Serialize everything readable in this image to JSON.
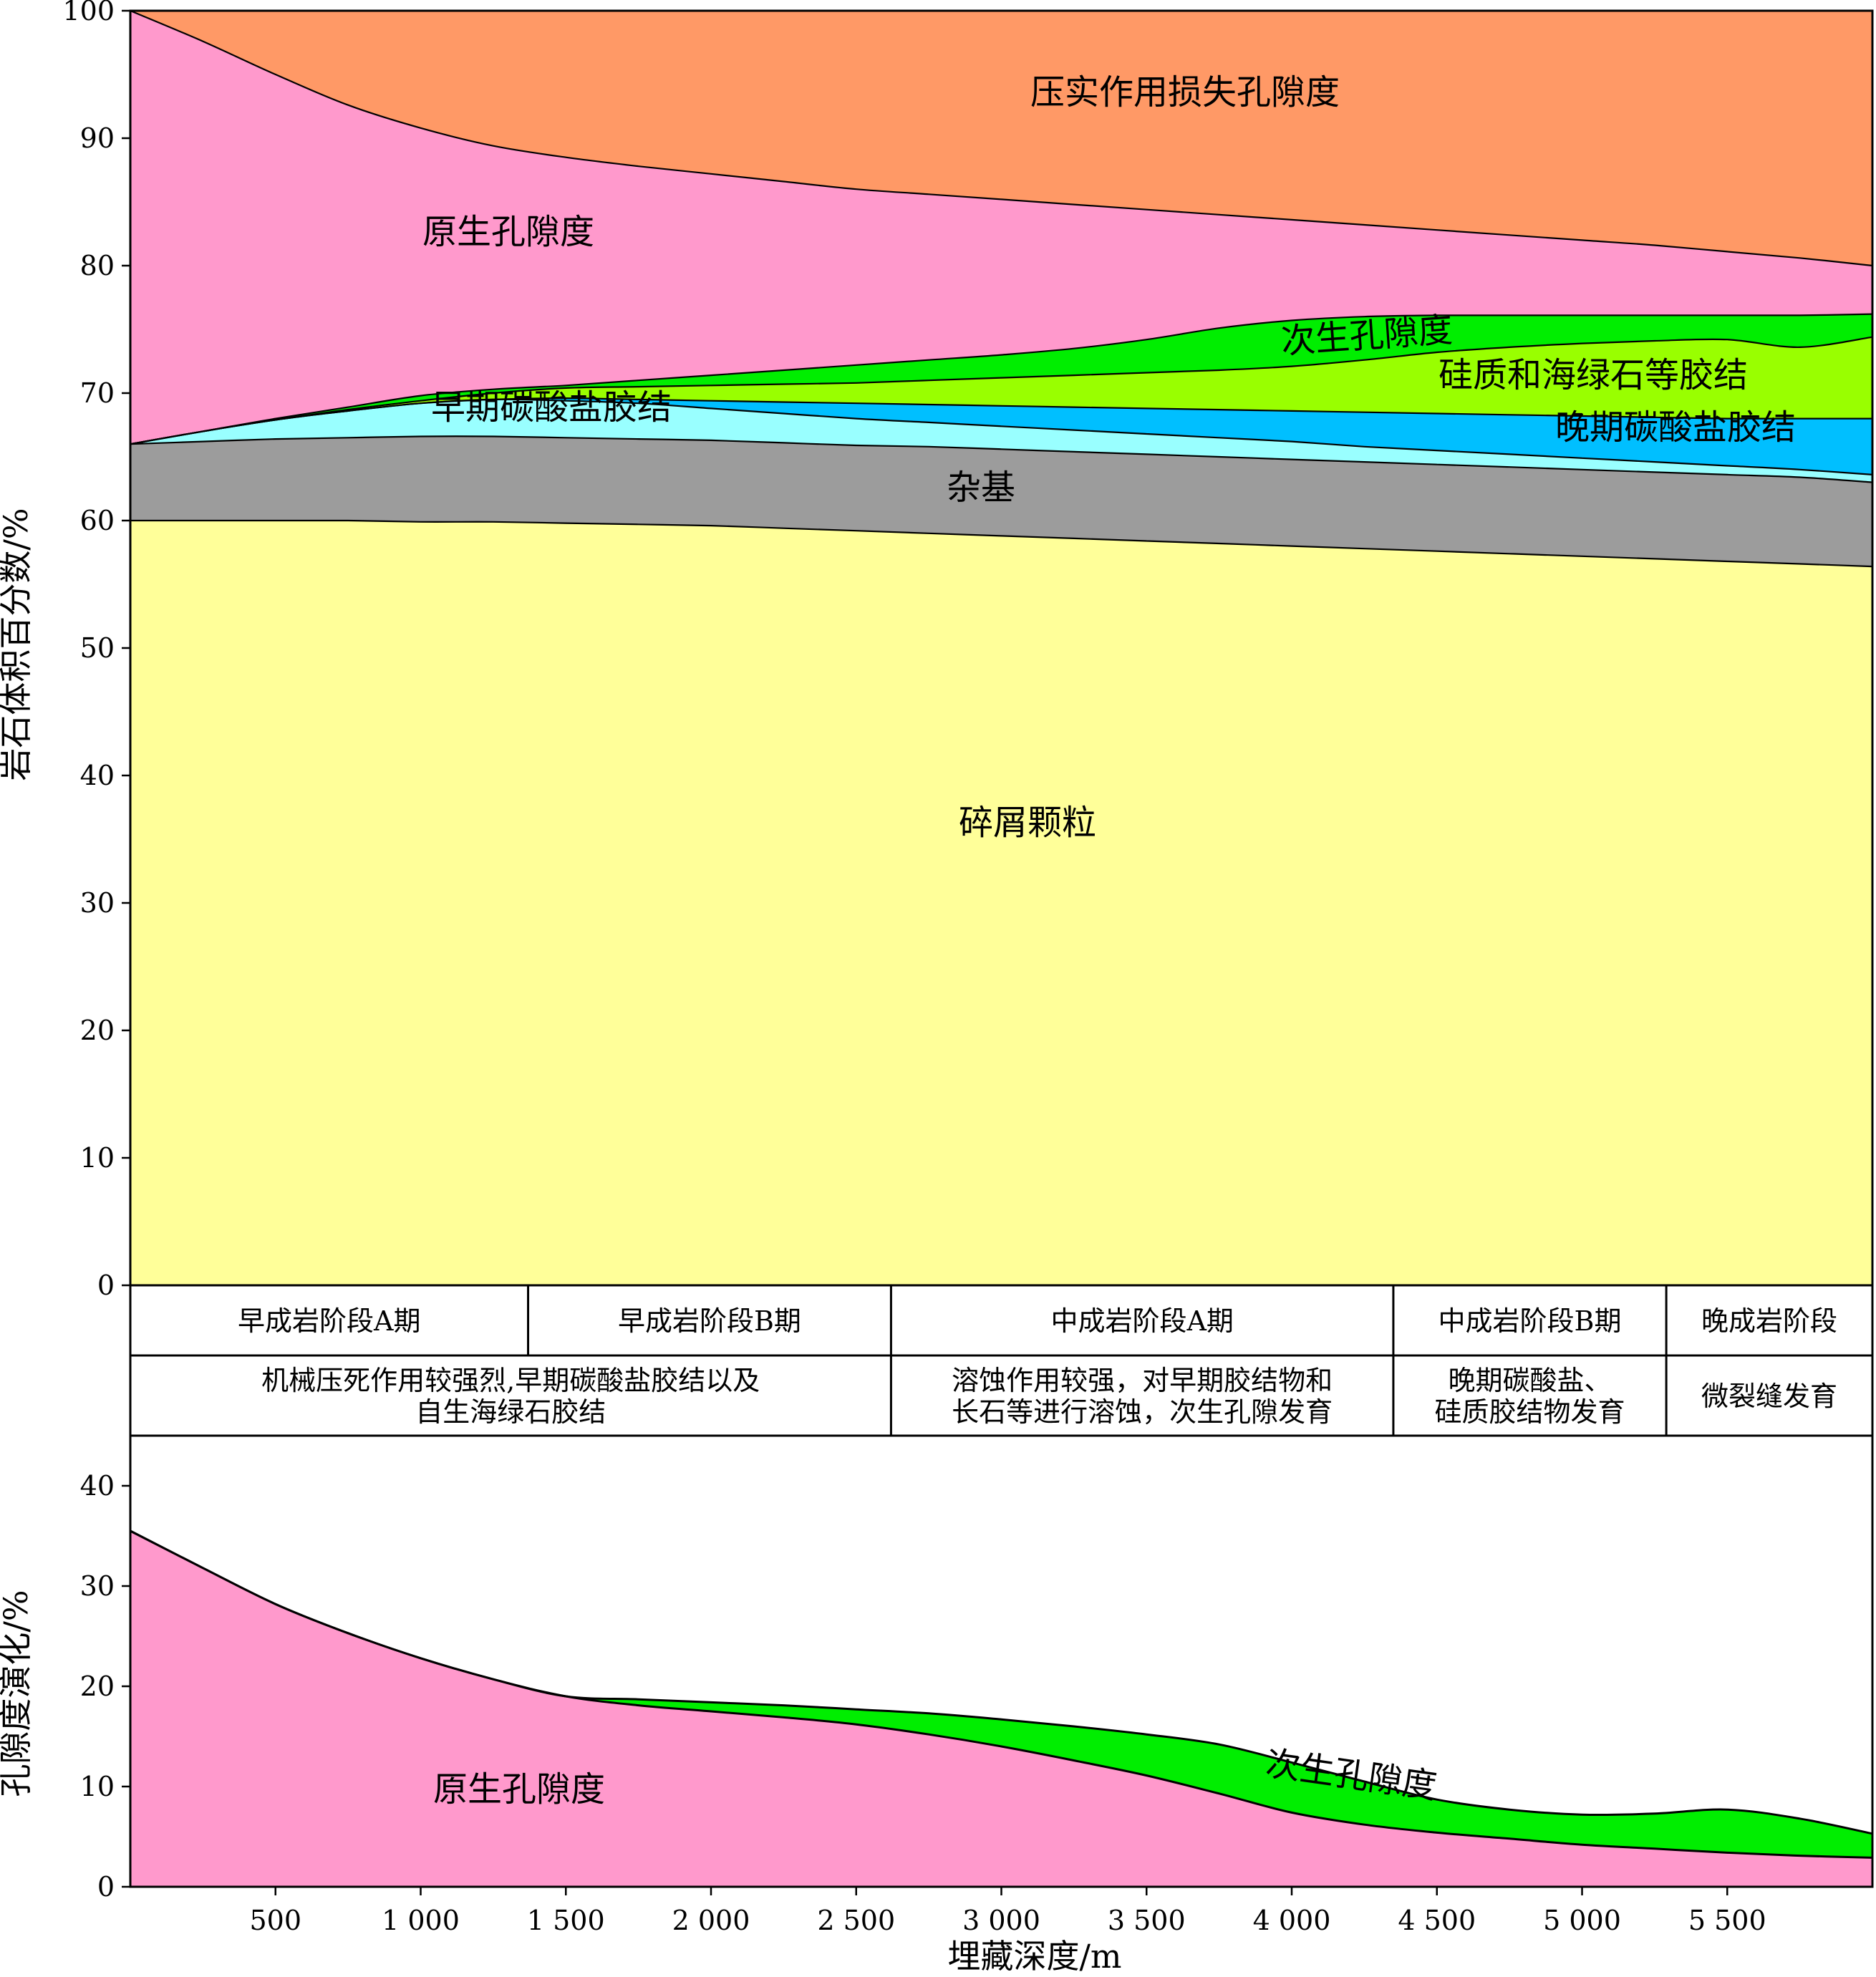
{
  "chart_data": [
    {
      "type": "area",
      "ylabel": "岩石体积百分数/%",
      "ylim": [
        0,
        100
      ],
      "yticks": [
        0,
        10,
        20,
        30,
        40,
        50,
        60,
        70,
        80,
        90,
        100
      ],
      "xlim": [
        0,
        6000
      ],
      "x": [
        0,
        250,
        500,
        750,
        1000,
        1250,
        1500,
        1750,
        2000,
        2250,
        2500,
        2750,
        3000,
        3250,
        3500,
        3750,
        4000,
        4250,
        4500,
        4750,
        5000,
        5250,
        5500,
        5750,
        6000
      ],
      "boundaries": {
        "clastic_grains_top": [
          60.0,
          60.0,
          60.0,
          60.0,
          59.9,
          59.9,
          59.8,
          59.7,
          59.6,
          59.4,
          59.2,
          59.0,
          58.8,
          58.6,
          58.4,
          58.2,
          58.0,
          57.8,
          57.6,
          57.4,
          57.2,
          57.0,
          56.8,
          56.6,
          56.4
        ],
        "matrix_top": [
          66.0,
          66.2,
          66.4,
          66.5,
          66.6,
          66.6,
          66.5,
          66.4,
          66.3,
          66.1,
          65.9,
          65.8,
          65.6,
          65.4,
          65.2,
          65.0,
          64.8,
          64.6,
          64.4,
          64.2,
          64.0,
          63.8,
          63.6,
          63.4,
          63.0
        ],
        "early_carbonate_top": [
          66.0,
          67.0,
          67.9,
          68.6,
          69.2,
          69.5,
          69.4,
          69.2,
          68.8,
          68.4,
          68.0,
          67.7,
          67.4,
          67.1,
          66.8,
          66.5,
          66.2,
          65.8,
          65.5,
          65.2,
          64.9,
          64.6,
          64.3,
          64.0,
          63.6
        ],
        "late_carbonate_top": [
          66.0,
          67.0,
          67.9,
          68.6,
          69.2,
          69.5,
          69.6,
          69.5,
          69.4,
          69.3,
          69.2,
          69.1,
          69.0,
          68.9,
          68.8,
          68.7,
          68.6,
          68.5,
          68.4,
          68.3,
          68.2,
          68.1,
          68.0,
          68.0,
          68.0
        ],
        "siliceous_glauconite_top": [
          66.0,
          67.0,
          67.9,
          68.7,
          69.4,
          70.0,
          70.4,
          70.5,
          70.6,
          70.7,
          70.8,
          71.0,
          71.2,
          71.4,
          71.6,
          71.8,
          72.1,
          72.6,
          73.2,
          73.6,
          73.9,
          74.1,
          74.2,
          73.6,
          74.4
        ],
        "secondary_porosity_top": [
          66.0,
          67.0,
          68.0,
          68.9,
          69.8,
          70.3,
          70.6,
          71.0,
          71.4,
          71.8,
          72.2,
          72.6,
          73.0,
          73.5,
          74.2,
          75.1,
          75.7,
          76.0,
          76.1,
          76.1,
          76.1,
          76.1,
          76.1,
          76.1,
          76.2
        ],
        "primary_porosity_top": [
          100.0,
          97.6,
          95.0,
          92.6,
          90.8,
          89.4,
          88.5,
          87.8,
          87.2,
          86.6,
          86.0,
          85.6,
          85.2,
          84.8,
          84.4,
          84.0,
          83.6,
          83.2,
          82.8,
          82.4,
          82.0,
          81.6,
          81.1,
          80.6,
          80.0
        ],
        "compaction_loss_top": [
          100,
          100,
          100,
          100,
          100,
          100,
          100,
          100,
          100,
          100,
          100,
          100,
          100,
          100,
          100,
          100,
          100,
          100,
          100,
          100,
          100,
          100,
          100,
          100,
          100
        ]
      },
      "series": [
        {
          "key": "clastic",
          "name": "碎屑颗粒",
          "color": "#ffff99"
        },
        {
          "key": "matrix",
          "name": "杂基",
          "color": "#9c9c9c"
        },
        {
          "key": "early_carb",
          "name": "早期碳酸盐胶结",
          "color": "#99ffff"
        },
        {
          "key": "late_carb",
          "name": "晚期碳酸盐胶结",
          "color": "#00bfff"
        },
        {
          "key": "silic",
          "name": "硅质和海绿石等胶结",
          "color": "#99ff00"
        },
        {
          "key": "secondary",
          "name": "次生孔隙度",
          "color": "#00ee00"
        },
        {
          "key": "primary",
          "name": "原生孔隙度",
          "color": "#ff99cc"
        },
        {
          "key": "compaction",
          "name": "压实作用损失孔隙度",
          "color": "#ff9966"
        }
      ]
    },
    {
      "type": "area",
      "ylabel": "孔隙度演化/%",
      "xlabel": "埋藏深度/m",
      "ylim": [
        0,
        45
      ],
      "yticks": [
        0,
        10,
        20,
        30,
        40
      ],
      "xlim": [
        0,
        6000
      ],
      "xticks": [
        500,
        1000,
        1500,
        2000,
        2500,
        3000,
        3500,
        4000,
        4500,
        5000,
        5500
      ],
      "xtick_labels": [
        "500",
        "1 000",
        "1 500",
        "2 000",
        "2 500",
        "3 000",
        "3 500",
        "4 000",
        "4 500",
        "5 000",
        "5 500"
      ],
      "x": [
        0,
        250,
        500,
        750,
        1000,
        1250,
        1500,
        1750,
        2000,
        2250,
        2500,
        2750,
        3000,
        3250,
        3500,
        3750,
        4000,
        4250,
        4500,
        4750,
        5000,
        5250,
        5500,
        5750,
        6000
      ],
      "primary_porosity": [
        35.5,
        31.8,
        28.2,
        25.3,
        22.8,
        20.7,
        19.0,
        18.1,
        17.5,
        16.9,
        16.2,
        15.2,
        14.0,
        12.6,
        11.1,
        9.3,
        7.4,
        6.2,
        5.4,
        4.8,
        4.2,
        3.8,
        3.4,
        3.1,
        2.9
      ],
      "total_porosity": [
        35.5,
        31.8,
        28.2,
        25.3,
        22.8,
        20.7,
        19.0,
        18.7,
        18.4,
        18.1,
        17.7,
        17.3,
        16.7,
        16.0,
        15.2,
        14.2,
        12.4,
        10.5,
        8.7,
        7.7,
        7.2,
        7.3,
        7.7,
        6.8,
        5.3
      ],
      "series": [
        {
          "name": "原生孔隙度",
          "color": "#ff99cc"
        },
        {
          "name": "次生孔隙度",
          "color": "#00ee00"
        }
      ]
    }
  ],
  "stages": [
    {
      "label": "早成岩阶段A期",
      "from": 0,
      "to": 1370
    },
    {
      "label": "早成岩阶段B期",
      "from": 1370,
      "to": 2620
    },
    {
      "label": "中成岩阶段A期",
      "from": 2620,
      "to": 4350
    },
    {
      "label": "中成岩阶段B期",
      "from": 4350,
      "to": 5290
    },
    {
      "label": "晚成岩阶段",
      "from": 5290,
      "to": 6000
    }
  ],
  "stage_descriptions": [
    {
      "lines": [
        "机械压死作用较强烈,早期碳酸盐胶结以及",
        "自生海绿石胶结"
      ],
      "from": 0,
      "to": 2620
    },
    {
      "lines": [
        "溶蚀作用较强，对早期胶结物和",
        "长石等进行溶蚀，次生孔隙发育"
      ],
      "from": 2620,
      "to": 4350
    },
    {
      "lines": [
        "晚期碳酸盐、",
        "硅质胶结物发育"
      ],
      "from": 4350,
      "to": 5290
    },
    {
      "lines": [
        "微裂缝发育"
      ],
      "from": 5290,
      "to": 6000
    }
  ]
}
